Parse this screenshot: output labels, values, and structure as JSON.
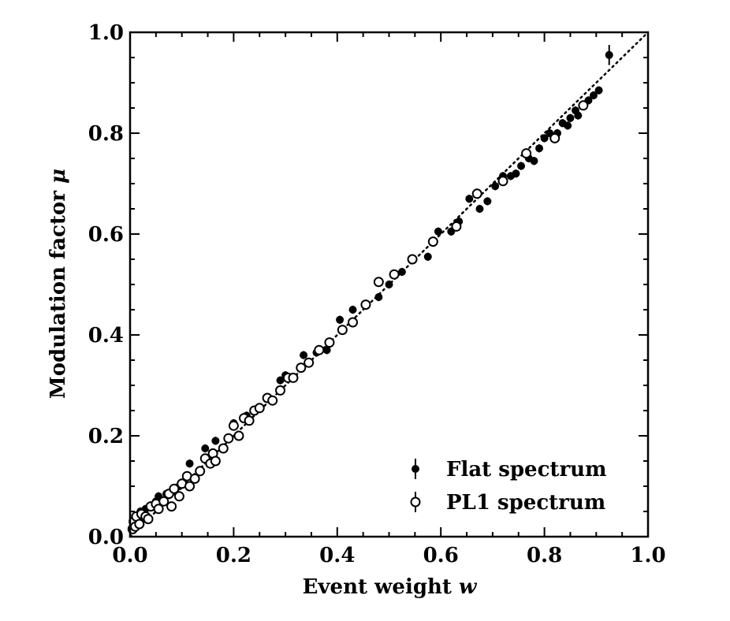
{
  "chart_data": {
    "type": "scatter",
    "xlabel": "Event weight",
    "xlabel_symbol": "w",
    "ylabel": "Modulation factor",
    "ylabel_symbol": "μ",
    "xlim": [
      0.0,
      1.0
    ],
    "ylim": [
      0.0,
      1.0
    ],
    "x_ticks": [
      "0.0",
      "0.2",
      "0.4",
      "0.6",
      "0.8",
      "1.0"
    ],
    "y_ticks": [
      "0.0",
      "0.2",
      "0.4",
      "0.6",
      "0.8",
      "1.0"
    ],
    "reference_line": {
      "style": "dotted",
      "from": [
        0,
        0
      ],
      "to": [
        1,
        1
      ]
    },
    "legend_position": "lower-right",
    "series": [
      {
        "name": "Flat spectrum",
        "marker": "filled-circle",
        "color": "#000000",
        "points": [
          [
            0.005,
            0.02
          ],
          [
            0.01,
            0.03
          ],
          [
            0.015,
            0.04
          ],
          [
            0.02,
            0.05
          ],
          [
            0.03,
            0.055
          ],
          [
            0.05,
            0.07
          ],
          [
            0.055,
            0.08
          ],
          [
            0.07,
            0.085
          ],
          [
            0.085,
            0.09
          ],
          [
            0.095,
            0.1
          ],
          [
            0.115,
            0.145
          ],
          [
            0.145,
            0.175
          ],
          [
            0.165,
            0.19
          ],
          [
            0.2,
            0.225
          ],
          [
            0.225,
            0.24
          ],
          [
            0.29,
            0.31
          ],
          [
            0.3,
            0.32
          ],
          [
            0.335,
            0.36
          ],
          [
            0.36,
            0.365
          ],
          [
            0.38,
            0.37
          ],
          [
            0.405,
            0.43
          ],
          [
            0.43,
            0.45
          ],
          [
            0.48,
            0.475
          ],
          [
            0.5,
            0.5
          ],
          [
            0.525,
            0.525
          ],
          [
            0.575,
            0.555
          ],
          [
            0.595,
            0.605
          ],
          [
            0.62,
            0.605
          ],
          [
            0.635,
            0.625
          ],
          [
            0.655,
            0.67
          ],
          [
            0.675,
            0.65
          ],
          [
            0.69,
            0.665
          ],
          [
            0.705,
            0.695
          ],
          [
            0.72,
            0.715
          ],
          [
            0.735,
            0.715
          ],
          [
            0.745,
            0.72
          ],
          [
            0.755,
            0.735
          ],
          [
            0.77,
            0.75
          ],
          [
            0.78,
            0.745
          ],
          [
            0.79,
            0.77
          ],
          [
            0.8,
            0.79
          ],
          [
            0.81,
            0.8
          ],
          [
            0.825,
            0.8
          ],
          [
            0.835,
            0.82
          ],
          [
            0.845,
            0.815
          ],
          [
            0.85,
            0.83
          ],
          [
            0.86,
            0.845
          ],
          [
            0.865,
            0.835
          ],
          [
            0.875,
            0.855
          ],
          [
            0.885,
            0.865
          ],
          [
            0.895,
            0.875
          ],
          [
            0.905,
            0.885
          ],
          [
            0.925,
            0.955
          ]
        ],
        "errors": [
          0.008,
          0.008,
          0.008,
          0.008,
          0.008,
          0.008,
          0.008,
          0.008,
          0.008,
          0.008,
          0.008,
          0.008,
          0.008,
          0.008,
          0.008,
          0.008,
          0.008,
          0.008,
          0.008,
          0.008,
          0.008,
          0.008,
          0.008,
          0.008,
          0.008,
          0.008,
          0.008,
          0.008,
          0.008,
          0.008,
          0.008,
          0.008,
          0.008,
          0.008,
          0.008,
          0.008,
          0.008,
          0.008,
          0.008,
          0.008,
          0.008,
          0.008,
          0.008,
          0.008,
          0.008,
          0.008,
          0.008,
          0.008,
          0.008,
          0.008,
          0.008,
          0.008,
          0.02
        ]
      },
      {
        "name": "PL1 spectrum",
        "marker": "open-circle",
        "color": "#000000",
        "points": [
          [
            0.005,
            0.015
          ],
          [
            0.007,
            0.03
          ],
          [
            0.01,
            0.02
          ],
          [
            0.012,
            0.04
          ],
          [
            0.018,
            0.025
          ],
          [
            0.022,
            0.045
          ],
          [
            0.03,
            0.04
          ],
          [
            0.035,
            0.035
          ],
          [
            0.04,
            0.06
          ],
          [
            0.05,
            0.065
          ],
          [
            0.055,
            0.055
          ],
          [
            0.065,
            0.07
          ],
          [
            0.075,
            0.085
          ],
          [
            0.08,
            0.06
          ],
          [
            0.085,
            0.095
          ],
          [
            0.095,
            0.08
          ],
          [
            0.1,
            0.105
          ],
          [
            0.11,
            0.12
          ],
          [
            0.115,
            0.1
          ],
          [
            0.125,
            0.115
          ],
          [
            0.135,
            0.13
          ],
          [
            0.145,
            0.155
          ],
          [
            0.155,
            0.145
          ],
          [
            0.16,
            0.165
          ],
          [
            0.165,
            0.15
          ],
          [
            0.18,
            0.175
          ],
          [
            0.19,
            0.195
          ],
          [
            0.2,
            0.22
          ],
          [
            0.21,
            0.2
          ],
          [
            0.22,
            0.235
          ],
          [
            0.23,
            0.23
          ],
          [
            0.24,
            0.25
          ],
          [
            0.25,
            0.255
          ],
          [
            0.265,
            0.275
          ],
          [
            0.275,
            0.27
          ],
          [
            0.29,
            0.29
          ],
          [
            0.305,
            0.315
          ],
          [
            0.315,
            0.315
          ],
          [
            0.33,
            0.335
          ],
          [
            0.345,
            0.345
          ],
          [
            0.365,
            0.37
          ],
          [
            0.385,
            0.385
          ],
          [
            0.41,
            0.41
          ],
          [
            0.43,
            0.425
          ],
          [
            0.455,
            0.46
          ],
          [
            0.48,
            0.505
          ],
          [
            0.51,
            0.52
          ],
          [
            0.545,
            0.55
          ],
          [
            0.585,
            0.585
          ],
          [
            0.63,
            0.615
          ],
          [
            0.67,
            0.68
          ],
          [
            0.72,
            0.705
          ],
          [
            0.765,
            0.76
          ],
          [
            0.82,
            0.79
          ],
          [
            0.875,
            0.855
          ]
        ]
      }
    ]
  }
}
